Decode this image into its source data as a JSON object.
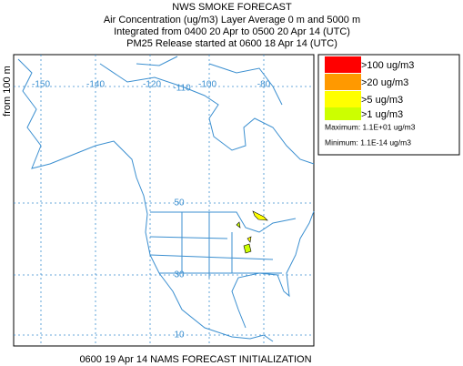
{
  "header": {
    "title": "NWS SMOKE FORECAST",
    "line1": "Air Concentration (ug/m3) Layer Average    0 m and  5000 m",
    "line2": "Integrated from 0400 20 Apr to 0500 20 Apr 14 (UTC)",
    "line3": "PM25 Release started at 0600 18 Apr 14 (UTC)"
  },
  "side_label": "from   100 m",
  "map": {
    "lon_labels": [
      "-150",
      "-140",
      "-120",
      "-110",
      "-100",
      "-80"
    ],
    "lat_labels": [
      "50",
      "30",
      "10"
    ]
  },
  "legend": [
    {
      "label": ">100 ug/m3",
      "color": "#ff0000"
    },
    {
      "label": ">20 ug/m3",
      "color": "#ff9900"
    },
    {
      "label": ">5 ug/m3",
      "color": "#ffff00"
    },
    {
      "label": ">1 ug/m3",
      "color": "#ccff00"
    }
  ],
  "stats": {
    "maximum": "Maximum: 1.1E+01 ug/m3",
    "minimum": "Minimum: 1.1E-14 ug/m3"
  },
  "footer": "0600 19 Apr 14 NAMS FORECAST INITIALIZATION"
}
